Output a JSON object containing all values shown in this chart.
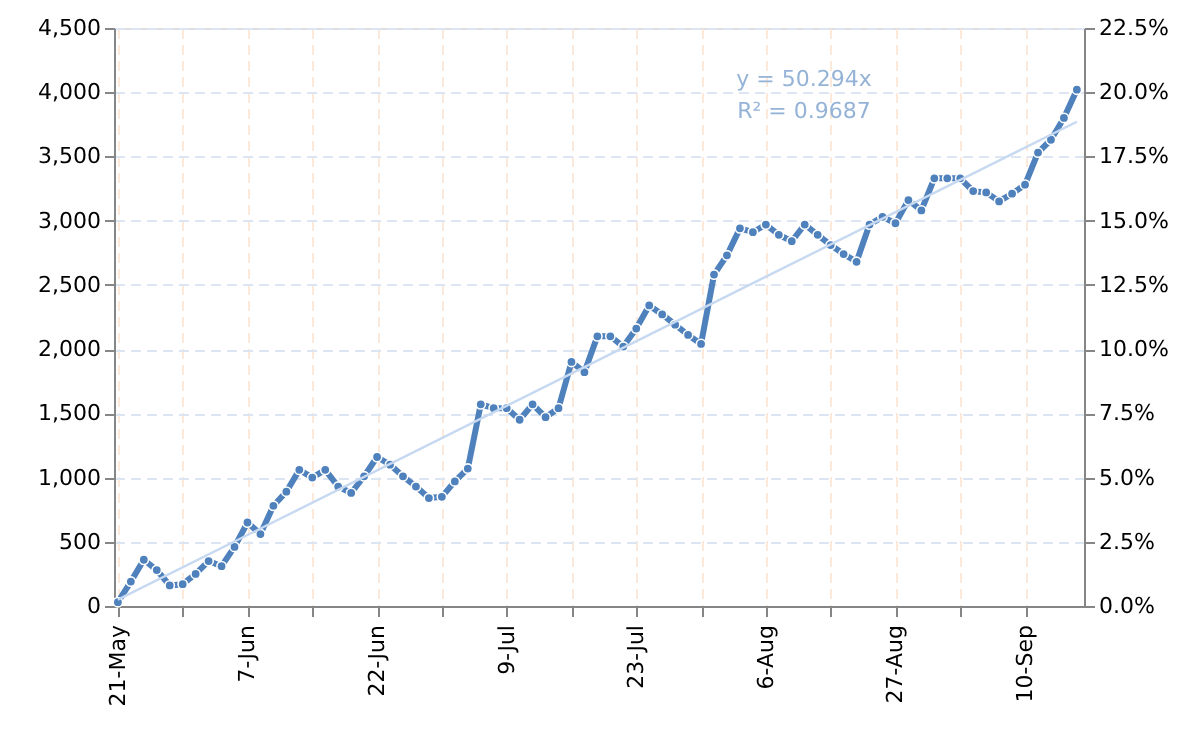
{
  "chart_data": {
    "type": "line",
    "categories": [
      "21-May",
      null,
      null,
      null,
      null,
      null,
      null,
      null,
      null,
      null,
      "7-Jun",
      null,
      null,
      null,
      null,
      null,
      null,
      null,
      null,
      null,
      "22-Jun",
      null,
      null,
      null,
      null,
      null,
      null,
      null,
      null,
      null,
      "9-Jul",
      null,
      null,
      null,
      null,
      null,
      null,
      null,
      null,
      null,
      "23-Jul",
      null,
      null,
      null,
      null,
      null,
      null,
      null,
      null,
      null,
      "6-Aug",
      null,
      null,
      null,
      null,
      null,
      null,
      null,
      null,
      null,
      "27-Aug",
      null,
      null,
      null,
      null,
      null,
      null,
      null,
      null,
      null,
      "10-Sep",
      null,
      null,
      null,
      null
    ],
    "series": [
      {
        "type": "line",
        "color": "#4f81bd",
        "marker": "circle",
        "values": [
          30,
          190,
          360,
          280,
          160,
          170,
          250,
          350,
          310,
          460,
          650,
          560,
          780,
          890,
          1060,
          1000,
          1060,
          930,
          880,
          1010,
          1160,
          1100,
          1010,
          930,
          840,
          850,
          970,
          1070,
          1570,
          1540,
          1540,
          1450,
          1570,
          1470,
          1540,
          1900,
          1820,
          2100,
          2100,
          2020,
          2160,
          2340,
          2270,
          2190,
          2110,
          2040,
          2580,
          2730,
          2940,
          2910,
          2970,
          2890,
          2840,
          2970,
          2890,
          2810,
          2740,
          2680,
          2970,
          3030,
          2980,
          3160,
          3080,
          3330,
          3330,
          3330,
          3230,
          3220,
          3150,
          3210,
          3280,
          3530,
          3630,
          3800,
          4020
        ]
      },
      {
        "type": "line",
        "color": "#c6d9f1",
        "marker": "none",
        "values": [
          50,
          null,
          null,
          null,
          null,
          null,
          null,
          null,
          null,
          null,
          null,
          null,
          null,
          null,
          null,
          null,
          null,
          null,
          null,
          null,
          null,
          null,
          null,
          null,
          null,
          null,
          null,
          null,
          null,
          null,
          null,
          null,
          null,
          null,
          null,
          null,
          null,
          null,
          null,
          null,
          null,
          null,
          null,
          null,
          null,
          null,
          null,
          null,
          null,
          null,
          null,
          null,
          null,
          null,
          null,
          null,
          null,
          null,
          null,
          null,
          null,
          null,
          null,
          null,
          null,
          null,
          null,
          null,
          null,
          null,
          null,
          null,
          null,
          null,
          3770
        ]
      }
    ],
    "ylim": [
      0,
      4500
    ],
    "yticks": [
      0,
      500,
      {
        "value": 1000,
        "label": "1,000"
      },
      {
        "value": 1500,
        "label": "1,500"
      },
      {
        "value": 2000,
        "label": "2,000"
      },
      {
        "value": 2500,
        "label": "2,500"
      },
      {
        "value": 3000,
        "label": "3,000"
      },
      {
        "value": 3500,
        "label": "3,500"
      },
      {
        "value": 4000,
        "label": "4,000"
      },
      {
        "value": 4500,
        "label": "4,500"
      }
    ],
    "y2lim": [
      0,
      22.5
    ],
    "y2ticks": [
      {
        "value": 0,
        "label": "0.0%"
      },
      {
        "value": 2.5,
        "label": "2.5%"
      },
      {
        "value": 5,
        "label": "5.0%"
      },
      {
        "value": 7.5,
        "label": "7.5%"
      },
      {
        "value": 10,
        "label": "10.0%"
      },
      {
        "value": 12.5,
        "label": "12.5%"
      },
      {
        "value": 15,
        "label": "15.0%"
      },
      {
        "value": 17.5,
        "label": "17.5%"
      },
      {
        "value": 20,
        "label": "20.0%"
      },
      {
        "value": 22.5,
        "label": "22.5%"
      }
    ],
    "grid": true,
    "annotations": [
      "y = 50.294x",
      "R² = 0.9687"
    ]
  }
}
